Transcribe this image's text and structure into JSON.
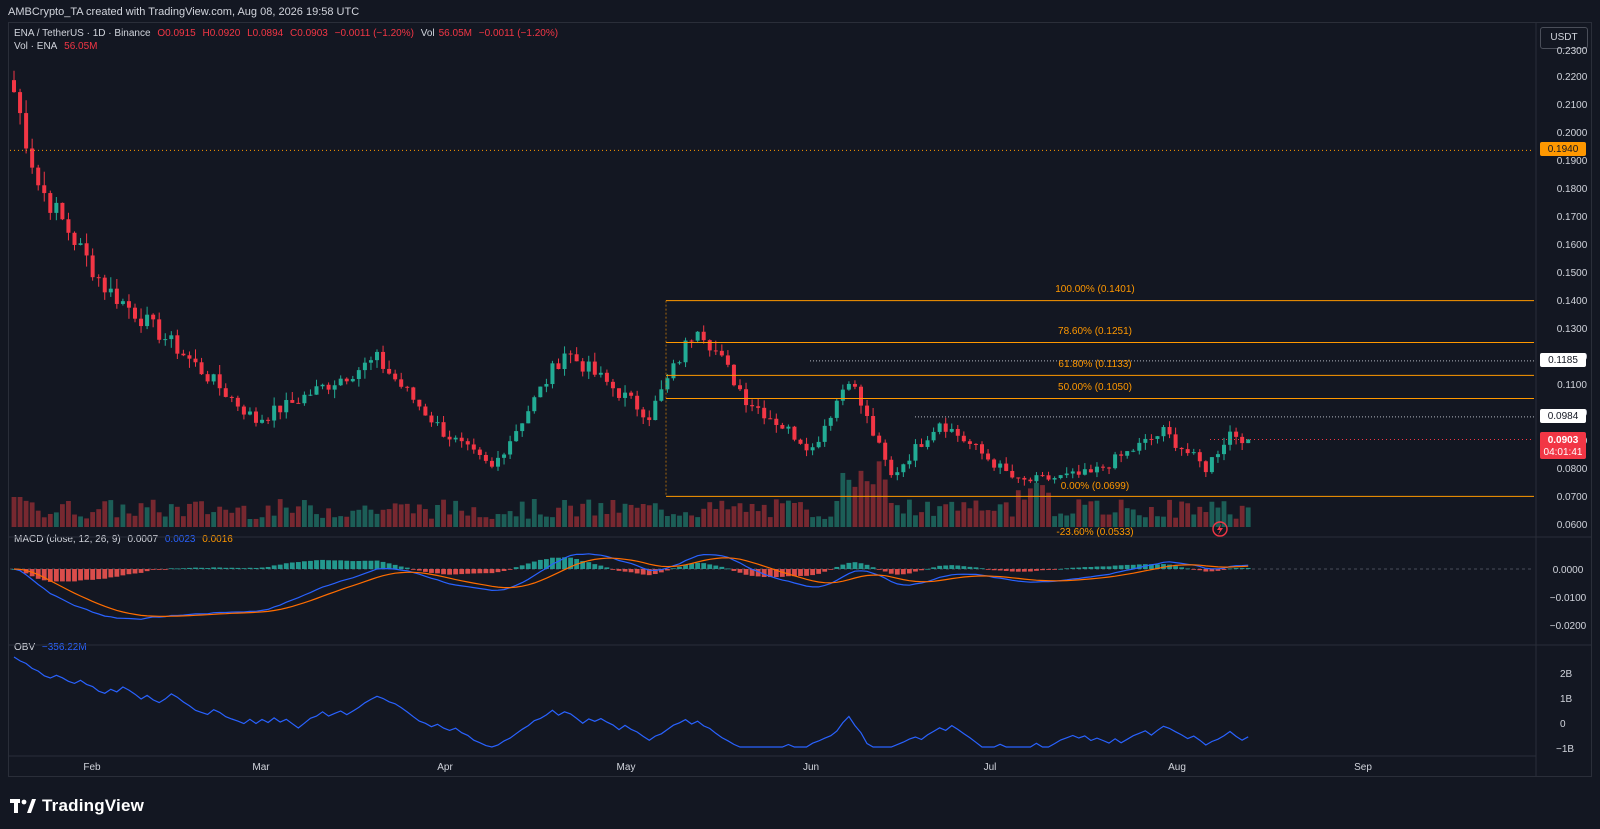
{
  "header": {
    "attribution": "AMBCrypto_TA created with TradingView.com, Aug 08, 2026 19:58 UTC"
  },
  "legend": {
    "symbol": "ENA / TetherUS · 1D · Binance",
    "open": "O0.0915",
    "high": "H0.0920",
    "low": "L0.0894",
    "close": "C0.0903",
    "change": "−0.0011 (−1.20%)",
    "vol_label": "Vol",
    "vol_value": "56.05M",
    "vol_change": "−0.0011 (−1.20%)",
    "vol_row_label": "Vol · ENA",
    "vol_row_value": "56.05M",
    "macd_label": "MACD (close, 12, 26, 9)",
    "macd_hist": "0.0007",
    "macd_line": "0.0023",
    "macd_signal": "0.0016",
    "obv_label": "OBV",
    "obv_value": "−356.22M"
  },
  "currency_button": "USDT",
  "price_axis": {
    "ticks": [
      "0.2300",
      "0.2200",
      "0.2100",
      "0.2000",
      "0.1900",
      "0.1800",
      "0.1700",
      "0.1600",
      "0.1500",
      "0.1400",
      "0.1300",
      "0.1200",
      "0.1100",
      "0.1000",
      "0.0900",
      "0.0800",
      "0.0700",
      "0.0600"
    ],
    "marker_0194": "0.1940",
    "marker_01185": "0.1185",
    "marker_00984": "0.0984",
    "marker_last": "0.0903",
    "countdown": "04:01:41"
  },
  "macd_axis": {
    "ticks": [
      "0.0000",
      "−0.0100",
      "−0.0200"
    ]
  },
  "obv_axis": {
    "ticks": [
      "2B",
      "1B",
      "0",
      "−1B"
    ]
  },
  "time_axis": {
    "ticks": [
      "Feb",
      "Mar",
      "Apr",
      "May",
      "Jun",
      "Jul",
      "Aug",
      "Sep"
    ]
  },
  "fib_labels": {
    "f100": "100.00% (0.1401)",
    "f786": "78.60% (0.1251)",
    "f618": "61.80% (0.1133)",
    "f500": "50.00% (0.1050)",
    "f000": "0.00% (0.0699)",
    "f_neg236": "-23.60% (0.0533)"
  },
  "brand": {
    "name": "TradingView"
  },
  "colors": {
    "up": "#22ab94",
    "down": "#f23645",
    "fib": "#ff9800",
    "macd": "#2962ff",
    "signal": "#ff6d00",
    "obv": "#2962ff"
  },
  "chart_data": {
    "type": "candlestick",
    "symbol": "ENA/USDT",
    "interval": "1D",
    "ylim": [
      0.055,
      0.235
    ],
    "price_key_points": [
      {
        "date": "Jan 16",
        "close": 0.215
      },
      {
        "date": "Jan 20",
        "close": 0.182
      },
      {
        "date": "Jan 31",
        "close": 0.145
      },
      {
        "date": "Feb 12",
        "close": 0.123
      },
      {
        "date": "Feb 25",
        "close": 0.097
      },
      {
        "date": "Mar 17",
        "close": 0.119
      },
      {
        "date": "Mar 28",
        "close": 0.093
      },
      {
        "date": "Apr 05",
        "close": 0.08
      },
      {
        "date": "Apr 17",
        "close": 0.122
      },
      {
        "date": "May 01",
        "close": 0.099
      },
      {
        "date": "May 09",
        "close": 0.132
      },
      {
        "date": "May 17",
        "close": 0.105
      },
      {
        "date": "May 28",
        "close": 0.087
      },
      {
        "date": "Jun 03",
        "close": 0.113
      },
      {
        "date": "Jun 10",
        "close": 0.077
      },
      {
        "date": "Jun 18",
        "close": 0.097
      },
      {
        "date": "Jul 01",
        "close": 0.075
      },
      {
        "date": "Jul 13",
        "close": 0.078
      },
      {
        "date": "Jul 25",
        "close": 0.093
      },
      {
        "date": "Aug 01",
        "close": 0.08
      },
      {
        "date": "Aug 05",
        "close": 0.093
      },
      {
        "date": "Aug 08",
        "close": 0.0903
      }
    ],
    "fibonacci": [
      {
        "level": "100.00%",
        "price": 0.1401
      },
      {
        "level": "78.60%",
        "price": 0.1251
      },
      {
        "level": "61.80%",
        "price": 0.1133
      },
      {
        "level": "50.00%",
        "price": 0.105
      },
      {
        "level": "0.00%",
        "price": 0.0699
      },
      {
        "level": "-23.60%",
        "price": 0.0533
      }
    ],
    "horizontal_levels": [
      0.194,
      0.1185,
      0.0984
    ],
    "last_price": 0.0903
  }
}
